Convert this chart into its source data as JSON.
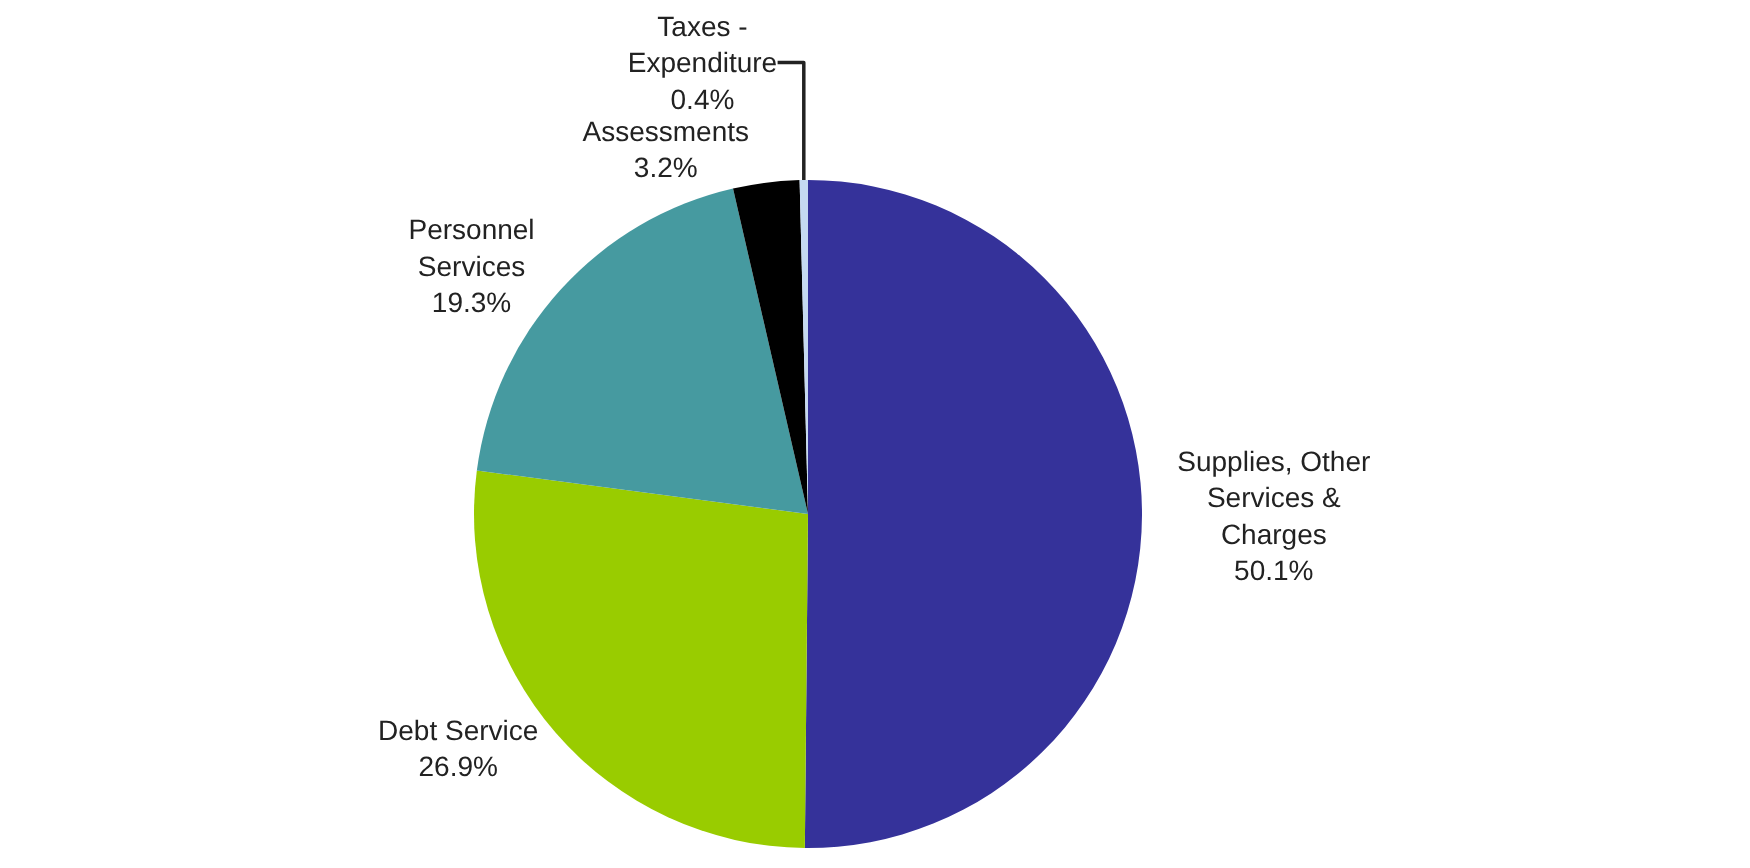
{
  "chart_data": {
    "type": "pie",
    "categories": [
      "Supplies, Other Services & Charges",
      "Debt Service",
      "Personnel Services",
      "Assessments",
      "Taxes - Expenditure"
    ],
    "values": [
      50.1,
      26.9,
      19.3,
      3.2,
      0.4
    ],
    "colors": [
      "#35329a",
      "#99cc00",
      "#469aa0",
      "#000000",
      "#c5d9f1"
    ],
    "value_labels": [
      "50.1%",
      "26.9%",
      "19.3%",
      "3.2%",
      "0.4%"
    ],
    "legend": false
  }
}
